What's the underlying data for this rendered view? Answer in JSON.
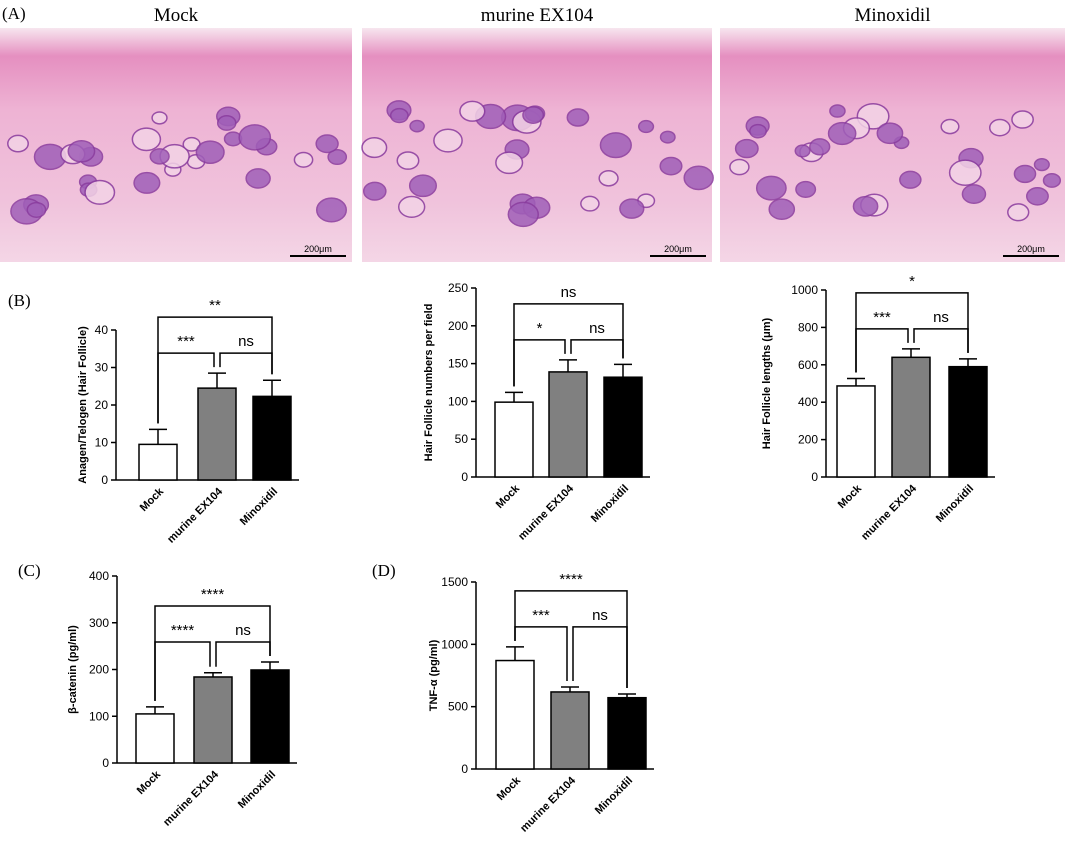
{
  "figure": {
    "panel_label": "(A)",
    "images": [
      {
        "title": "Mock",
        "scale_bar": "200μm"
      },
      {
        "title": "murine EX104",
        "scale_bar": "200μm"
      },
      {
        "title": "Minoxidil",
        "scale_bar": "200μm"
      }
    ]
  },
  "chart_data": [
    {
      "type": "bar",
      "panel_label": "(B)",
      "y_label": "Anagen/Telogen (Hair Follicle)",
      "categories": [
        "Mock",
        "murine EX104",
        "Minoxidil"
      ],
      "values": [
        9.5,
        24.5,
        22.3
      ],
      "errors": [
        4,
        4,
        4.3
      ],
      "colors": [
        "#ffffff",
        "#808080",
        "#000000"
      ],
      "ylim": [
        0,
        40
      ],
      "yticks": [
        0,
        10,
        20,
        30,
        40
      ],
      "comparisons": [
        {
          "pair": [
            0,
            1
          ],
          "label": "***"
        },
        {
          "pair": [
            1,
            2
          ],
          "label": "ns"
        },
        {
          "pair": [
            0,
            2
          ],
          "label": "**"
        }
      ]
    },
    {
      "type": "bar",
      "y_label": "Hair Follicle numbers per field",
      "categories": [
        "Mock",
        "murine EX104",
        "Minoxidil"
      ],
      "values": [
        99,
        139,
        132
      ],
      "errors": [
        13,
        16,
        17
      ],
      "colors": [
        "#ffffff",
        "#808080",
        "#000000"
      ],
      "ylim": [
        0,
        250
      ],
      "yticks": [
        0,
        50,
        100,
        150,
        200,
        250
      ],
      "comparisons": [
        {
          "pair": [
            0,
            1
          ],
          "label": "*"
        },
        {
          "pair": [
            1,
            2
          ],
          "label": "ns"
        },
        {
          "pair": [
            0,
            2
          ],
          "label": "ns"
        }
      ]
    },
    {
      "type": "bar",
      "y_label": "Hair Follicle lengths (μm)",
      "categories": [
        "Mock",
        "murine EX104",
        "Minoxidil"
      ],
      "values": [
        487,
        640,
        590
      ],
      "errors": [
        40,
        45,
        42
      ],
      "colors": [
        "#ffffff",
        "#808080",
        "#000000"
      ],
      "ylim": [
        0,
        1000
      ],
      "yticks": [
        0,
        200,
        400,
        600,
        800,
        1000
      ],
      "comparisons": [
        {
          "pair": [
            0,
            1
          ],
          "label": "***"
        },
        {
          "pair": [
            1,
            2
          ],
          "label": "ns"
        },
        {
          "pair": [
            0,
            2
          ],
          "label": "*"
        }
      ]
    },
    {
      "type": "bar",
      "panel_label": "(C)",
      "y_label": "β-catenin (pg/ml)",
      "categories": [
        "Mock",
        "murine EX104",
        "Minoxidil"
      ],
      "values": [
        105,
        184,
        199
      ],
      "errors": [
        15,
        9,
        17
      ],
      "colors": [
        "#ffffff",
        "#808080",
        "#000000"
      ],
      "ylim": [
        0,
        400
      ],
      "yticks": [
        0,
        100,
        200,
        300,
        400
      ],
      "comparisons": [
        {
          "pair": [
            0,
            1
          ],
          "label": "****"
        },
        {
          "pair": [
            1,
            2
          ],
          "label": "ns"
        },
        {
          "pair": [
            0,
            2
          ],
          "label": "****"
        }
      ]
    },
    {
      "type": "bar",
      "panel_label": "(D)",
      "y_label": "TNF-α (pg/ml)",
      "categories": [
        "Mock",
        "murine EX104",
        "Minoxidil"
      ],
      "values": [
        870,
        618,
        572
      ],
      "errors": [
        110,
        40,
        30
      ],
      "colors": [
        "#ffffff",
        "#808080",
        "#000000"
      ],
      "ylim": [
        0,
        1500
      ],
      "yticks": [
        0,
        500,
        1000,
        1500
      ],
      "comparisons": [
        {
          "pair": [
            0,
            1
          ],
          "label": "***"
        },
        {
          "pair": [
            1,
            2
          ],
          "label": "ns"
        },
        {
          "pair": [
            0,
            2
          ],
          "label": "****"
        }
      ]
    }
  ]
}
